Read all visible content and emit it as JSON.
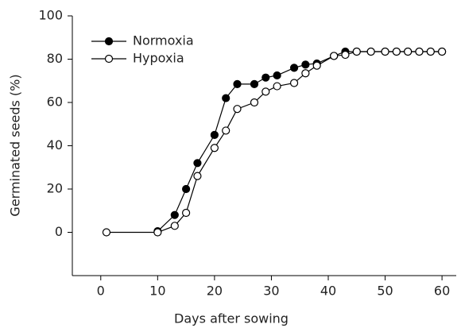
{
  "chart_data": {
    "type": "line",
    "xlabel": "Days after sowing",
    "ylabel": "Germinated seeds (%)",
    "xlim": [
      -5,
      62.5
    ],
    "ylim": [
      -20,
      100
    ],
    "xticks": [
      0,
      10,
      20,
      30,
      40,
      50,
      60
    ],
    "yticks": [
      0,
      20,
      40,
      60,
      80,
      100
    ],
    "legend": "top-left",
    "series": [
      {
        "name": "Normoxia",
        "color": "#000000",
        "marker": "filled",
        "x": [
          10,
          13,
          15,
          17,
          20,
          22,
          24,
          27,
          29,
          31,
          34,
          36,
          38,
          41,
          43,
          45,
          47.5,
          50,
          52,
          54,
          56,
          58,
          60
        ],
        "values": [
          0.5,
          8,
          20,
          32,
          45,
          62,
          68.5,
          68.5,
          71.5,
          72.5,
          76,
          77.5,
          78,
          81.5,
          83.5,
          83.5,
          83.5,
          83.5,
          83.5,
          83.5,
          83.5,
          83.5,
          83.5
        ]
      },
      {
        "name": "Hypoxia",
        "color": "#000000",
        "marker": "open",
        "x": [
          1,
          10,
          13,
          15,
          17,
          20,
          22,
          24,
          27,
          29,
          31,
          34,
          36,
          38,
          41,
          43,
          45,
          47.5,
          50,
          52,
          54,
          56,
          58,
          60
        ],
        "values": [
          0,
          0,
          3,
          9,
          26,
          39,
          47,
          57,
          60,
          65,
          67.5,
          69,
          73.5,
          77,
          81.5,
          82,
          83.5,
          83.5,
          83.5,
          83.5,
          83.5,
          83.5,
          83.5,
          83.5
        ]
      }
    ]
  }
}
